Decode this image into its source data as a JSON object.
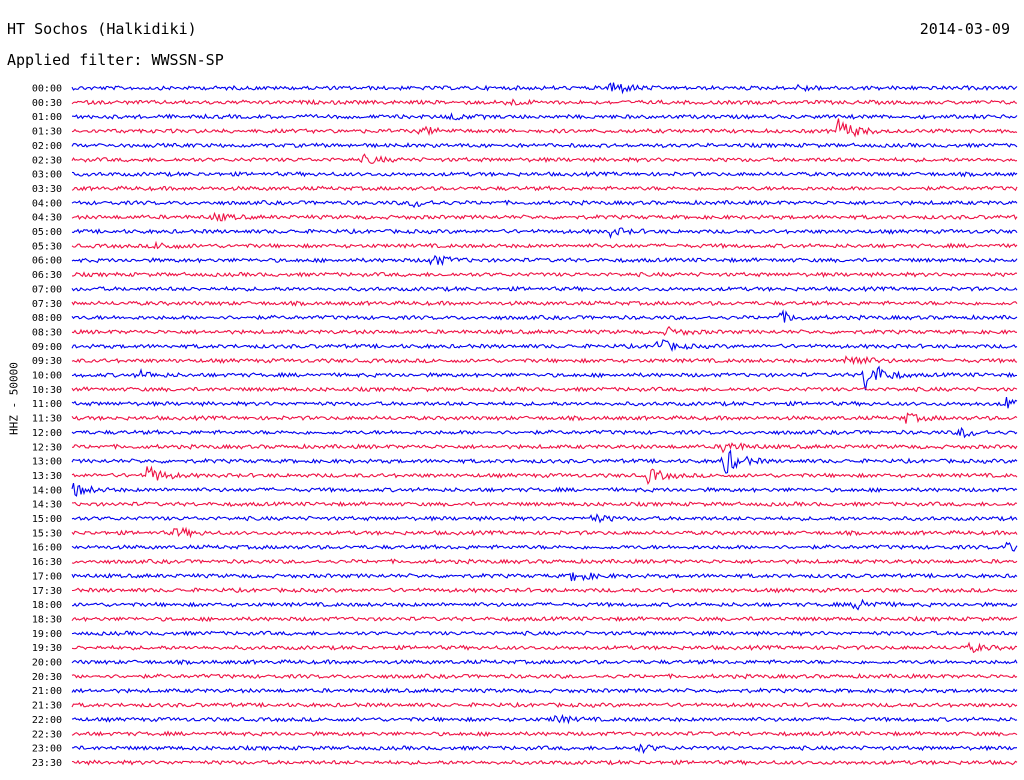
{
  "header": {
    "station": "HT Sochos (Halkidiki)",
    "date": "2014-03-09",
    "filter": "Applied filter: WWSSN-SP",
    "channel": "HHZ - 50000"
  },
  "colors": {
    "odd_trace": "#0000ee",
    "even_trace": "#ee1144"
  },
  "chart_data": {
    "type": "line",
    "title": "HT Sochos (Halkidiki)",
    "subtitle": "Applied filter: WWSSN-SP",
    "ylabel": "HHZ - 50000",
    "xlabel": "",
    "grid": false,
    "series": [
      {
        "time": "00:00",
        "events": [
          {
            "at": 0.57,
            "amp": 8
          },
          {
            "at": 0.77,
            "amp": 3
          }
        ]
      },
      {
        "time": "00:30",
        "events": [
          {
            "at": 0.46,
            "amp": 3
          }
        ]
      },
      {
        "time": "01:00",
        "events": [
          {
            "at": 0.4,
            "amp": 3
          }
        ]
      },
      {
        "time": "01:30",
        "events": [
          {
            "at": 0.81,
            "amp": 13
          },
          {
            "at": 0.37,
            "amp": 4
          }
        ]
      },
      {
        "time": "02:00",
        "events": []
      },
      {
        "time": "02:30",
        "events": [
          {
            "at": 0.31,
            "amp": 4
          }
        ]
      },
      {
        "time": "03:00",
        "events": []
      },
      {
        "time": "03:30",
        "events": []
      },
      {
        "time": "04:00",
        "events": [
          {
            "at": 0.36,
            "amp": 4
          }
        ]
      },
      {
        "time": "04:30",
        "events": [
          {
            "at": 0.15,
            "amp": 4
          }
        ]
      },
      {
        "time": "05:00",
        "events": [
          {
            "at": 0.57,
            "amp": 4
          }
        ]
      },
      {
        "time": "05:30",
        "events": [
          {
            "at": 0.09,
            "amp": 4
          }
        ]
      },
      {
        "time": "06:00",
        "events": [
          {
            "at": 0.38,
            "amp": 6
          }
        ]
      },
      {
        "time": "06:30",
        "events": []
      },
      {
        "time": "07:00",
        "events": []
      },
      {
        "time": "07:30",
        "events": []
      },
      {
        "time": "08:00",
        "events": [
          {
            "at": 0.75,
            "amp": 5
          }
        ]
      },
      {
        "time": "08:30",
        "events": [
          {
            "at": 0.63,
            "amp": 4
          }
        ]
      },
      {
        "time": "09:00",
        "events": [
          {
            "at": 0.62,
            "amp": 7
          }
        ]
      },
      {
        "time": "09:30",
        "events": [
          {
            "at": 0.82,
            "amp": 8
          }
        ]
      },
      {
        "time": "10:00",
        "events": [
          {
            "at": 0.84,
            "amp": 18
          },
          {
            "at": 0.07,
            "amp": 4
          }
        ]
      },
      {
        "time": "10:30",
        "events": []
      },
      {
        "time": "11:00",
        "events": [
          {
            "at": 0.99,
            "amp": 7
          }
        ]
      },
      {
        "time": "11:30",
        "events": [
          {
            "at": 0.88,
            "amp": 5
          }
        ]
      },
      {
        "time": "12:00",
        "events": [
          {
            "at": 0.94,
            "amp": 5
          }
        ]
      },
      {
        "time": "12:30",
        "events": [
          {
            "at": 0.69,
            "amp": 6
          }
        ]
      },
      {
        "time": "13:00",
        "events": [
          {
            "at": 0.69,
            "amp": 14
          }
        ]
      },
      {
        "time": "13:30",
        "events": [
          {
            "at": 0.08,
            "amp": 9
          },
          {
            "at": 0.61,
            "amp": 7
          }
        ]
      },
      {
        "time": "14:00",
        "events": [
          {
            "at": 0.0,
            "amp": 7
          }
        ]
      },
      {
        "time": "14:30",
        "events": []
      },
      {
        "time": "15:00",
        "events": [
          {
            "at": 0.55,
            "amp": 4
          }
        ]
      },
      {
        "time": "15:30",
        "events": [
          {
            "at": 0.11,
            "amp": 5
          }
        ]
      },
      {
        "time": "16:00",
        "events": [
          {
            "at": 0.99,
            "amp": 5
          }
        ]
      },
      {
        "time": "16:30",
        "events": []
      },
      {
        "time": "17:00",
        "events": [
          {
            "at": 0.53,
            "amp": 6
          }
        ]
      },
      {
        "time": "17:30",
        "events": []
      },
      {
        "time": "18:00",
        "events": [
          {
            "at": 0.83,
            "amp": 7
          }
        ]
      },
      {
        "time": "18:30",
        "events": []
      },
      {
        "time": "19:00",
        "events": []
      },
      {
        "time": "19:30",
        "events": [
          {
            "at": 0.95,
            "amp": 4
          }
        ]
      },
      {
        "time": "20:00",
        "events": []
      },
      {
        "time": "20:30",
        "events": []
      },
      {
        "time": "21:00",
        "events": []
      },
      {
        "time": "21:30",
        "events": []
      },
      {
        "time": "22:00",
        "events": [
          {
            "at": 0.51,
            "amp": 4
          }
        ]
      },
      {
        "time": "22:30",
        "events": []
      },
      {
        "time": "23:00",
        "events": [
          {
            "at": 0.6,
            "amp": 4
          }
        ]
      },
      {
        "time": "23:30",
        "events": []
      }
    ]
  }
}
